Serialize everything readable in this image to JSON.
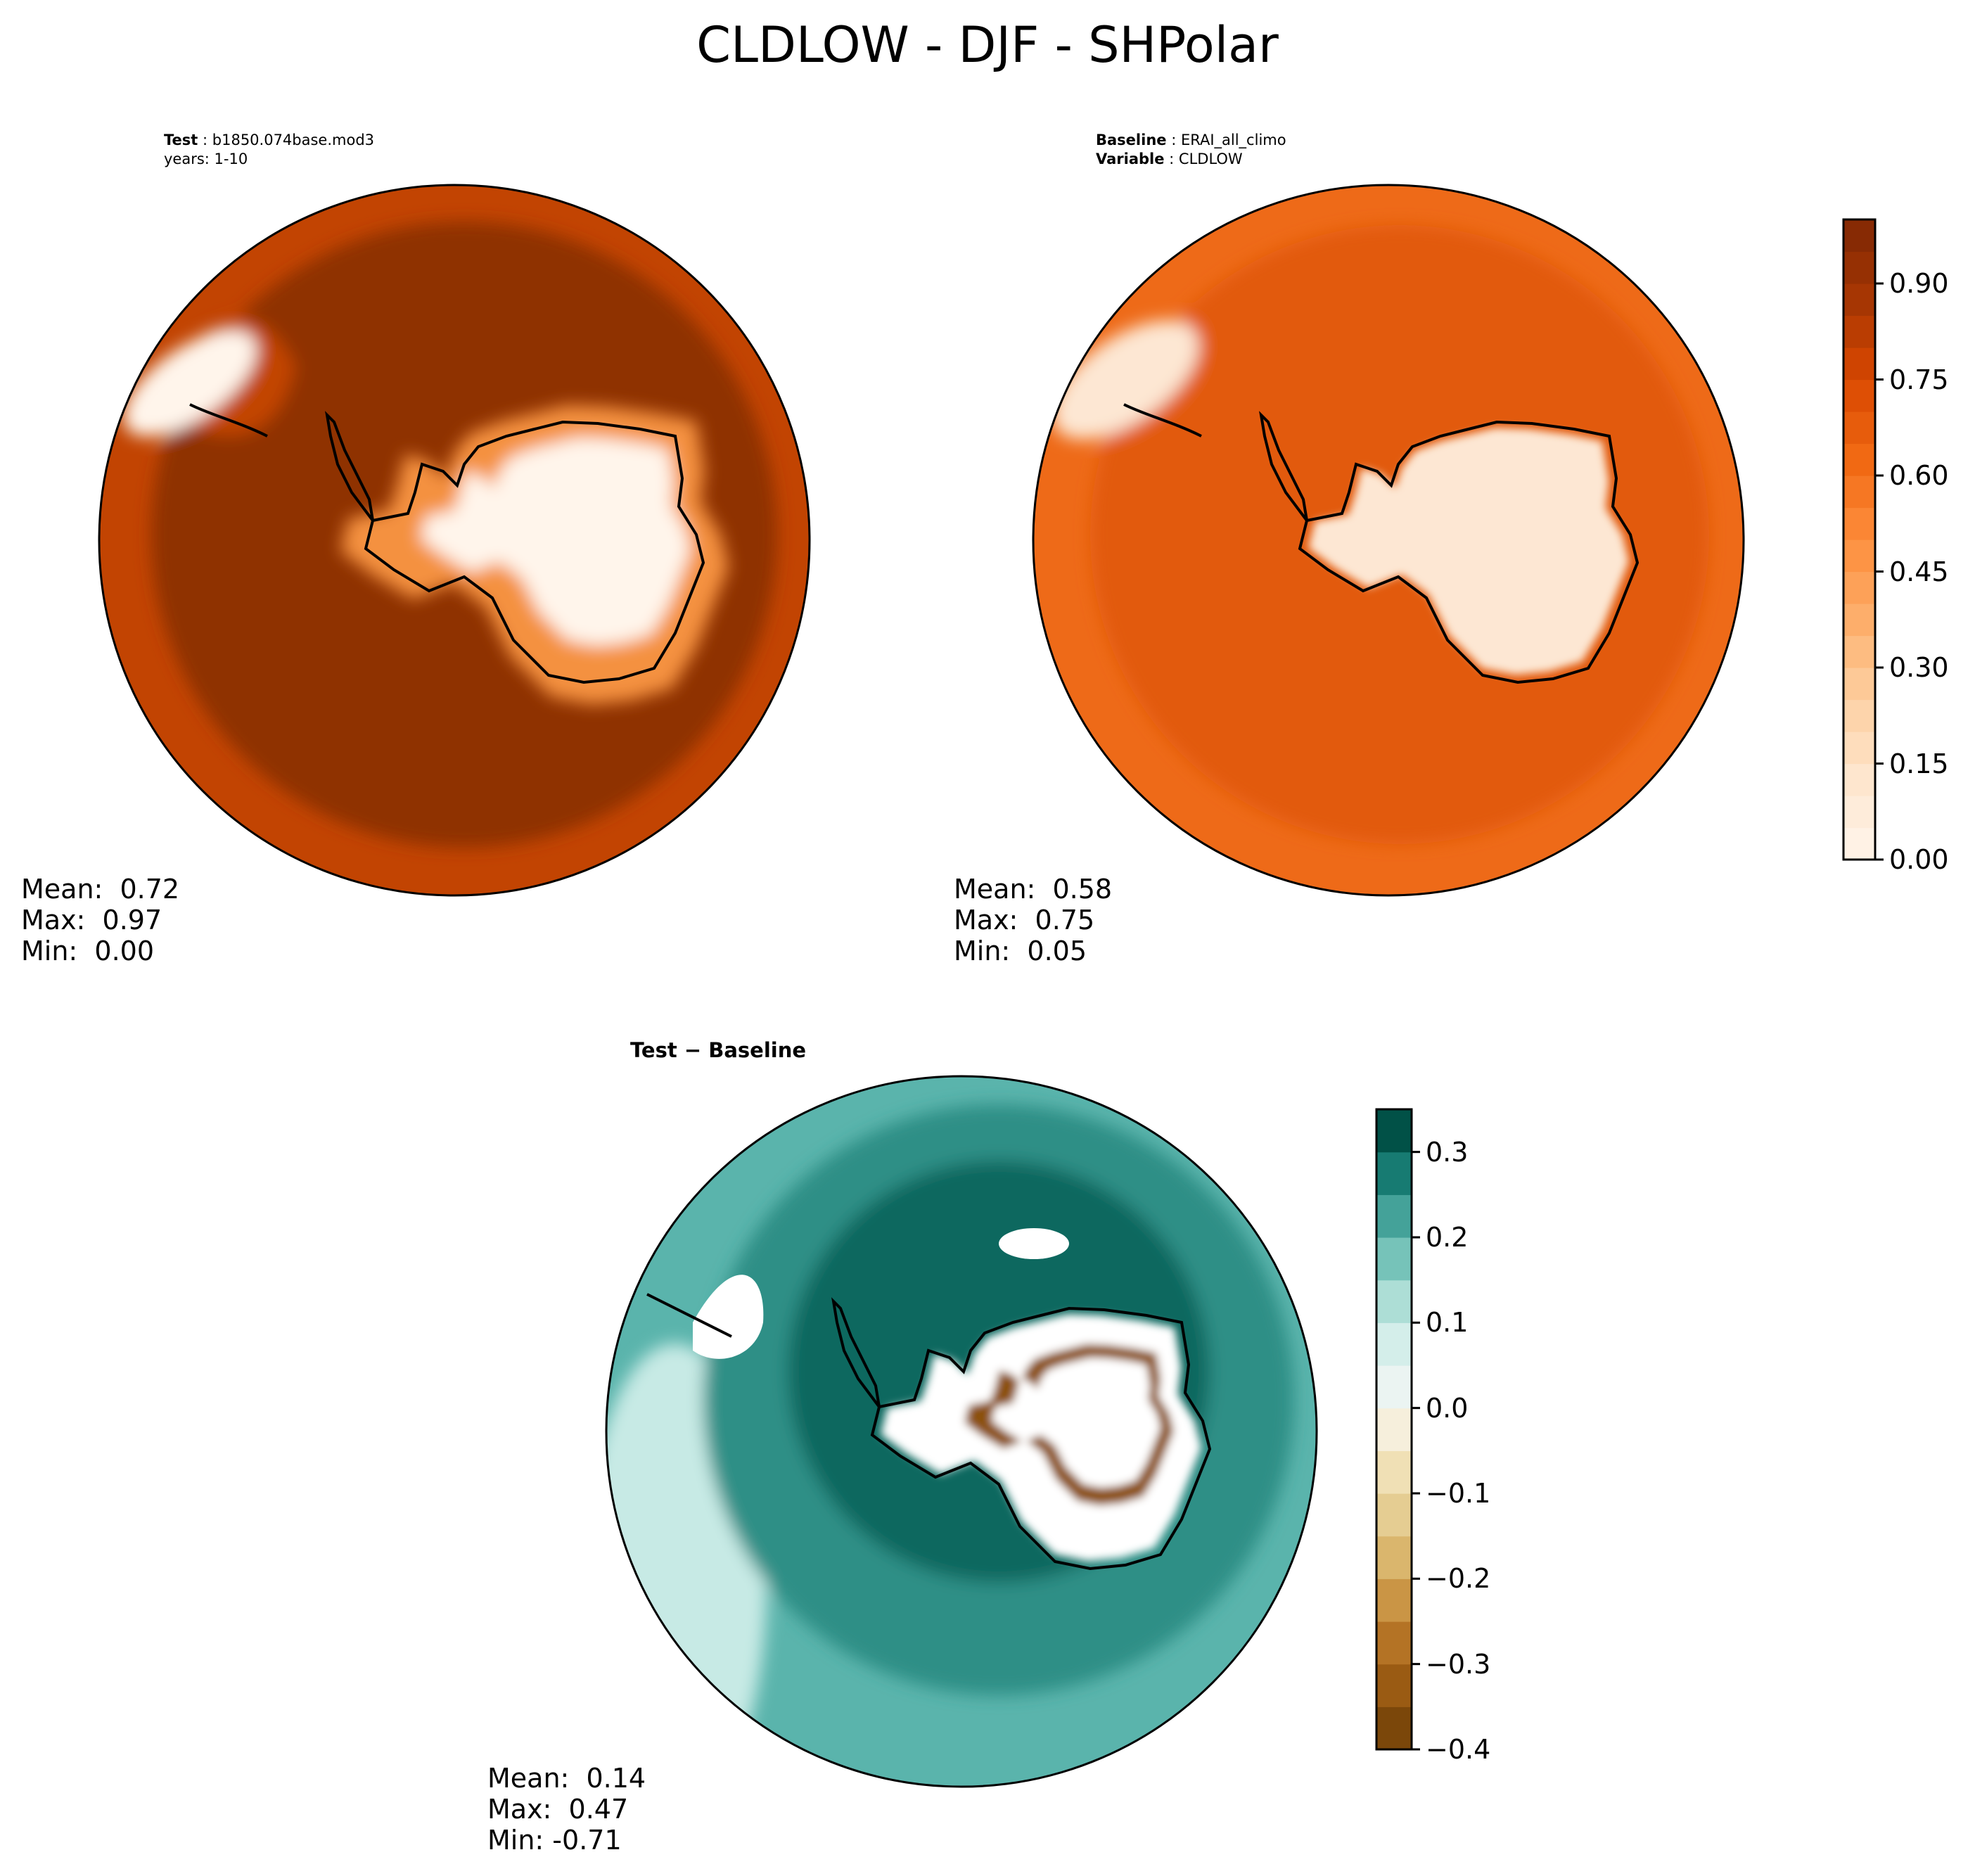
{
  "title": "CLDLOW - DJF - SHPolar",
  "panels": {
    "test": {
      "label_key": "Test",
      "label_value": "b1850.074base.mod3",
      "label_line2": "years: 1-10",
      "stats": {
        "mean": "Mean:  0.72",
        "max": "Max:  0.97",
        "min": "Min:  0.00"
      }
    },
    "baseline": {
      "label_key": "Baseline",
      "label_value": "ERAI_all_climo",
      "label2_key": "Variable",
      "label2_value": "CLDLOW",
      "stats": {
        "mean": "Mean:  0.58",
        "max": "Max:  0.75",
        "min": "Min:  0.05"
      }
    },
    "diff": {
      "title": "Test − Baseline",
      "stats": {
        "mean": "Mean:  0.14",
        "max": "Max:  0.47",
        "min": "Min: -0.71"
      }
    }
  },
  "colorbar_top": {
    "ticks": [
      "0.00",
      "0.15",
      "0.30",
      "0.45",
      "0.60",
      "0.75",
      "0.90"
    ],
    "range": [
      0,
      1.0
    ],
    "levels": 20,
    "colors": [
      "#fff5eb",
      "#fee6ce",
      "#fdd0a2",
      "#fdae6b",
      "#fd8d3c",
      "#f16913",
      "#d94801",
      "#a63603",
      "#7f2704"
    ]
  },
  "colorbar_diff": {
    "ticks": [
      "−0.4",
      "−0.3",
      "−0.2",
      "−0.1",
      "0.0",
      "0.1",
      "0.2",
      "0.3"
    ],
    "range": [
      -0.4,
      0.35
    ],
    "levels": 15,
    "colors": [
      "#6a3d0a",
      "#8c510a",
      "#a8651c",
      "#bf812d",
      "#d4a95c",
      "#dfc27d",
      "#ead8a6",
      "#f6e8c3",
      "#f5f5f5",
      "#e0f2ee",
      "#c7eae5",
      "#92d2c6",
      "#5ab4ac",
      "#2d8f86",
      "#01665e",
      "#003c30"
    ]
  },
  "map_colors": {
    "test_ocean": "#8f3004",
    "test_ring": "#c24402",
    "test_ice": "#fff5eb",
    "base_ocean": "#e25a0a",
    "base_ring": "#ee6a18",
    "base_ice": "#fde7d3",
    "diff_outer": "#5ab4ac",
    "diff_mid": "#2d8f86",
    "diff_inner": "#07685f",
    "diff_neg": "#8c510a",
    "coast": "#000000"
  }
}
